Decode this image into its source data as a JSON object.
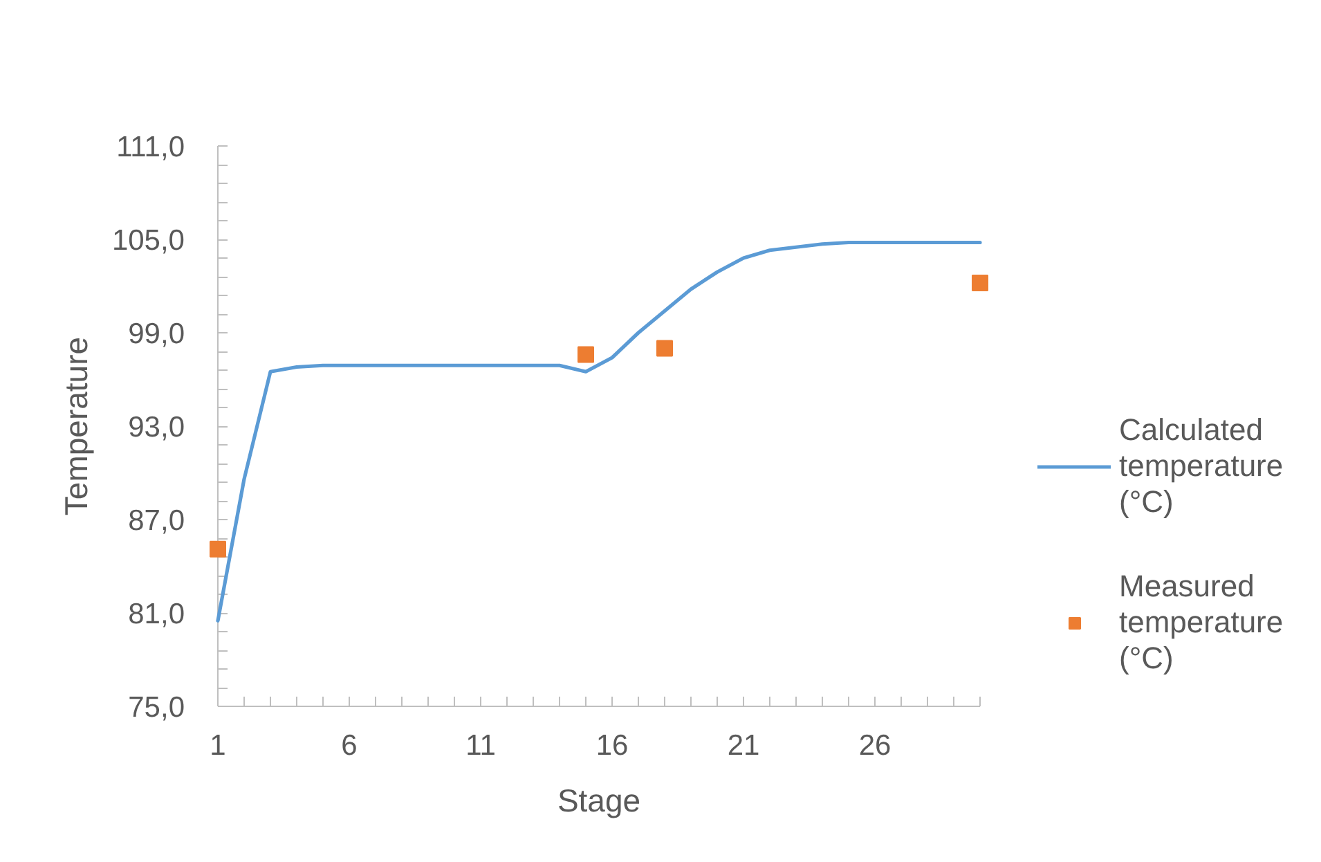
{
  "chart_data": {
    "type": "line",
    "xlabel": "Stage",
    "ylabel": "Temperature",
    "x": [
      1,
      2,
      3,
      4,
      5,
      6,
      7,
      8,
      9,
      10,
      11,
      12,
      13,
      14,
      15,
      16,
      17,
      18,
      19,
      20,
      21,
      22,
      23,
      24,
      25,
      26,
      27,
      28,
      29,
      30
    ],
    "series": [
      {
        "name": "Calculated temperature (°C)",
        "marker": "none",
        "line_style": "solid",
        "color": "#5b9bd5",
        "values": [
          80.5,
          89.6,
          96.5,
          96.8,
          96.9,
          96.9,
          96.9,
          96.9,
          96.9,
          96.9,
          96.9,
          96.9,
          96.9,
          96.9,
          96.5,
          97.4,
          99.0,
          100.4,
          101.8,
          102.9,
          103.8,
          104.3,
          104.5,
          104.7,
          104.8,
          104.8,
          104.8,
          104.8,
          104.8,
          104.8
        ]
      },
      {
        "name": "Measured temperature (°C)",
        "type": "scatter",
        "marker": "square",
        "color": "#ed7d31",
        "x": [
          1,
          15,
          18,
          30
        ],
        "values": [
          85.1,
          97.6,
          98.0,
          102.2
        ]
      }
    ],
    "xlim": [
      1,
      30
    ],
    "xticks": [
      1,
      {
        "value": 2,
        "label": null
      },
      {
        "value": 3,
        "label": null
      },
      {
        "value": 4,
        "label": null
      },
      {
        "value": 5,
        "label": null
      },
      6,
      {
        "value": 7,
        "label": null
      },
      {
        "value": 8,
        "label": null
      },
      {
        "value": 9,
        "label": null
      },
      {
        "value": 10,
        "label": null
      },
      11,
      {
        "value": 12,
        "label": null
      },
      {
        "value": 13,
        "label": null
      },
      {
        "value": 14,
        "label": null
      },
      {
        "value": 15,
        "label": null
      },
      16,
      {
        "value": 17,
        "label": null
      },
      {
        "value": 18,
        "label": null
      },
      {
        "value": 19,
        "label": null
      },
      {
        "value": 20,
        "label": null
      },
      21,
      {
        "value": 22,
        "label": null
      },
      {
        "value": 23,
        "label": null
      },
      {
        "value": 24,
        "label": null
      },
      {
        "value": 25,
        "label": null
      },
      26,
      {
        "value": 27,
        "label": null
      },
      {
        "value": 28,
        "label": null
      },
      {
        "value": 29,
        "label": null
      },
      {
        "value": 30,
        "label": null
      }
    ],
    "ylim": [
      75,
      111
    ],
    "yticks": [
      {
        "value": 75,
        "label": "75,0"
      },
      {
        "value": 76.2,
        "label": null
      },
      {
        "value": 77.4,
        "label": null
      },
      {
        "value": 78.6,
        "label": null
      },
      {
        "value": 79.8,
        "label": null
      },
      {
        "value": 81,
        "label": "81,0"
      },
      {
        "value": 82.2,
        "label": null
      },
      {
        "value": 83.4,
        "label": null
      },
      {
        "value": 84.6,
        "label": null
      },
      {
        "value": 85.8,
        "label": null
      },
      {
        "value": 87,
        "label": "87,0"
      },
      {
        "value": 88.2,
        "label": null
      },
      {
        "value": 89.4,
        "label": null
      },
      {
        "value": 90.6,
        "label": null
      },
      {
        "value": 91.8,
        "label": null
      },
      {
        "value": 93,
        "label": "93,0"
      },
      {
        "value": 94.2,
        "label": null
      },
      {
        "value": 95.4,
        "label": null
      },
      {
        "value": 96.6,
        "label": null
      },
      {
        "value": 97.8,
        "label": null
      },
      {
        "value": 99,
        "label": "99,0"
      },
      {
        "value": 100.2,
        "label": null
      },
      {
        "value": 101.4,
        "label": null
      },
      {
        "value": 102.6,
        "label": null
      },
      {
        "value": 103.8,
        "label": null
      },
      {
        "value": 105,
        "label": "105,0"
      },
      {
        "value": 106.2,
        "label": null
      },
      {
        "value": 107.4,
        "label": null
      },
      {
        "value": 108.6,
        "label": null
      },
      {
        "value": 109.8,
        "label": null
      },
      {
        "value": 111,
        "label": "111,0"
      }
    ],
    "legend": "right",
    "grid": false
  }
}
